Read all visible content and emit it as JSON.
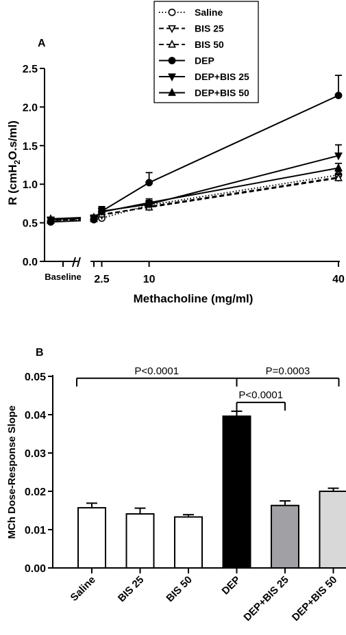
{
  "chart_data": [
    {
      "type": "line",
      "panel_label": "A",
      "ylabel": "R (cmH2O.s/ml)",
      "xlabel": "Methacholine (mg/ml)",
      "ylim": [
        0,
        2.5
      ],
      "y_ticks": [
        "0.0",
        "0.5",
        "1.0",
        "1.5",
        "2.0",
        "2.5"
      ],
      "x_ticks": [
        "Baseline",
        "2.5",
        "10",
        "40"
      ],
      "legend_position": "top",
      "series": [
        {
          "name": "Saline",
          "marker": "circle-open",
          "dash": "dotted",
          "baseline": 0.52,
          "x": [
            1.25,
            2.5,
            10,
            40
          ],
          "values": [
            0.54,
            0.56,
            0.73,
            1.12
          ],
          "err": [
            0.03,
            0.04,
            0.05,
            0.05
          ]
        },
        {
          "name": "BIS 25",
          "marker": "tri-down-open",
          "dash": "dashed",
          "baseline": 0.53,
          "x": [
            1.25,
            2.5,
            10,
            40
          ],
          "values": [
            0.55,
            0.6,
            0.71,
            1.09
          ],
          "err": [
            0.03,
            0.04,
            0.05,
            0.05
          ]
        },
        {
          "name": "BIS 50",
          "marker": "tri-up-open",
          "dash": "dashed",
          "baseline": 0.53,
          "x": [
            1.25,
            2.5,
            10,
            40
          ],
          "values": [
            0.55,
            0.61,
            0.7,
            1.08
          ],
          "err": [
            0.03,
            0.04,
            0.05,
            0.05
          ]
        },
        {
          "name": "DEP",
          "marker": "circle",
          "dash": "solid",
          "baseline": 0.51,
          "x": [
            1.25,
            2.5,
            10,
            40
          ],
          "values": [
            0.55,
            0.65,
            1.02,
            2.15
          ],
          "err": [
            0.04,
            0.06,
            0.13,
            0.26
          ]
        },
        {
          "name": "DEP+BIS 25",
          "marker": "tri-down",
          "dash": "solid",
          "baseline": 0.54,
          "x": [
            1.25,
            2.5,
            10,
            40
          ],
          "values": [
            0.56,
            0.65,
            0.74,
            1.37
          ],
          "err": [
            0.03,
            0.05,
            0.05,
            0.14
          ]
        },
        {
          "name": "DEP+BIS 50",
          "marker": "tri-up",
          "dash": "solid",
          "baseline": 0.55,
          "x": [
            1.25,
            2.5,
            10,
            40
          ],
          "values": [
            0.57,
            0.64,
            0.76,
            1.21
          ],
          "err": [
            0.03,
            0.05,
            0.05,
            0.06
          ]
        }
      ]
    },
    {
      "type": "bar",
      "panel_label": "B",
      "ylabel": "MCh Dose-Response Slope",
      "ylim": [
        0,
        0.05
      ],
      "y_ticks": [
        "0.00",
        "0.01",
        "0.02",
        "0.03",
        "0.04",
        "0.05"
      ],
      "categories": [
        "Saline",
        "BIS 25",
        "BIS 50",
        "DEP",
        "DEP+BIS 25",
        "DEP+BIS 50"
      ],
      "values": [
        0.0157,
        0.0141,
        0.0133,
        0.0396,
        0.0163,
        0.02
      ],
      "err": [
        0.0012,
        0.0015,
        0.0006,
        0.0013,
        0.0012,
        0.0008
      ],
      "colors": [
        "#ffffff",
        "#ffffff",
        "#ffffff",
        "#000000",
        "#a0a0a5",
        "#d8d8d8"
      ],
      "annotations": [
        {
          "text": "P<0.0001",
          "from": 0,
          "to": 3,
          "level": 0.0495
        },
        {
          "text": "P=0.0003",
          "from": 3,
          "to": 5,
          "level": 0.0495
        },
        {
          "text": "P<0.0001",
          "from": 3,
          "to": 4,
          "level": 0.0432
        }
      ]
    }
  ]
}
